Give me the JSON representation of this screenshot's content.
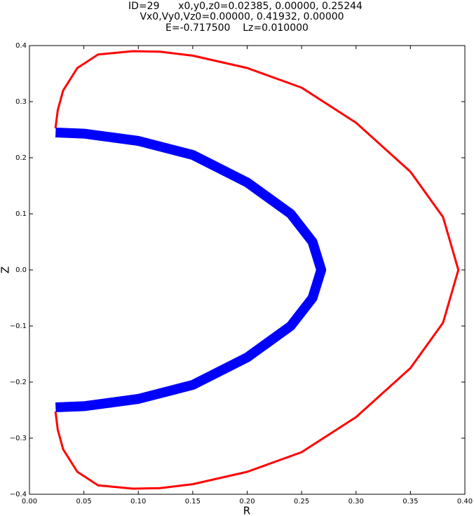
{
  "chart_data": {
    "type": "line",
    "title_lines": [
      "ID=29      x0,y0,z0=0.02385, 0.00000, 0.25244",
      "Vx0,Vy0,Vz0=0.00000, 0.41932, 0.00000",
      "E=-0.717500    Lz=0.010000"
    ],
    "xlabel": "R",
    "ylabel": "Z",
    "xlim": [
      0,
      0.4
    ],
    "ylim": [
      -0.4,
      0.4
    ],
    "xticks": [
      {
        "value": 0,
        "label": "0.00"
      },
      {
        "value": 0.05,
        "label": "0.05"
      },
      {
        "value": 0.1,
        "label": "0.10"
      },
      {
        "value": 0.15,
        "label": "0.15"
      },
      {
        "value": 0.2,
        "label": "0.20"
      },
      {
        "value": 0.25,
        "label": "0.25"
      },
      {
        "value": 0.3,
        "label": "0.30"
      },
      {
        "value": 0.35,
        "label": "0.35"
      },
      {
        "value": 0.4,
        "label": "0.40"
      }
    ],
    "yticks": [
      {
        "value": -0.4,
        "label": "−0.4"
      },
      {
        "value": -0.3,
        "label": "−0.3"
      },
      {
        "value": -0.2,
        "label": "−0.2"
      },
      {
        "value": -0.1,
        "label": "−0.1"
      },
      {
        "value": 0,
        "label": "0.0"
      },
      0.1,
      0.2,
      0.3,
      0.4
    ],
    "series": [
      {
        "color": "#ff0000",
        "x": [
          0.0239,
          0.026,
          0.031,
          0.044,
          0.063,
          0.095,
          0.12,
          0.15,
          0.2,
          0.25,
          0.3,
          0.35,
          0.38,
          0.394,
          0.38,
          0.35,
          0.3,
          0.25,
          0.2,
          0.15,
          0.12,
          0.095,
          0.063,
          0.044,
          0.031,
          0.026,
          0.0239
        ],
        "values": [
          0.2524,
          0.285,
          0.32,
          0.36,
          0.384,
          0.39,
          0.389,
          0.382,
          0.36,
          0.325,
          0.2625,
          0.175,
          0.094,
          0,
          -0.094,
          -0.175,
          -0.2625,
          -0.325,
          -0.36,
          -0.382,
          -0.389,
          -0.39,
          -0.384,
          -0.36,
          -0.32,
          -0.285,
          -0.2524
        ]
      },
      {
        "color": "#0000ff",
        "x": [
          0.024,
          0.05,
          0.1,
          0.15,
          0.2,
          0.24,
          0.26,
          0.268,
          0.26,
          0.24,
          0.2,
          0.15,
          0.1,
          0.05,
          0.024
        ],
        "values": [
          0.245,
          0.243,
          0.23,
          0.205,
          0.156,
          0.1,
          0.05,
          0,
          -0.05,
          -0.1,
          -0.156,
          -0.205,
          -0.23,
          -0.243,
          -0.245
        ]
      }
    ]
  }
}
